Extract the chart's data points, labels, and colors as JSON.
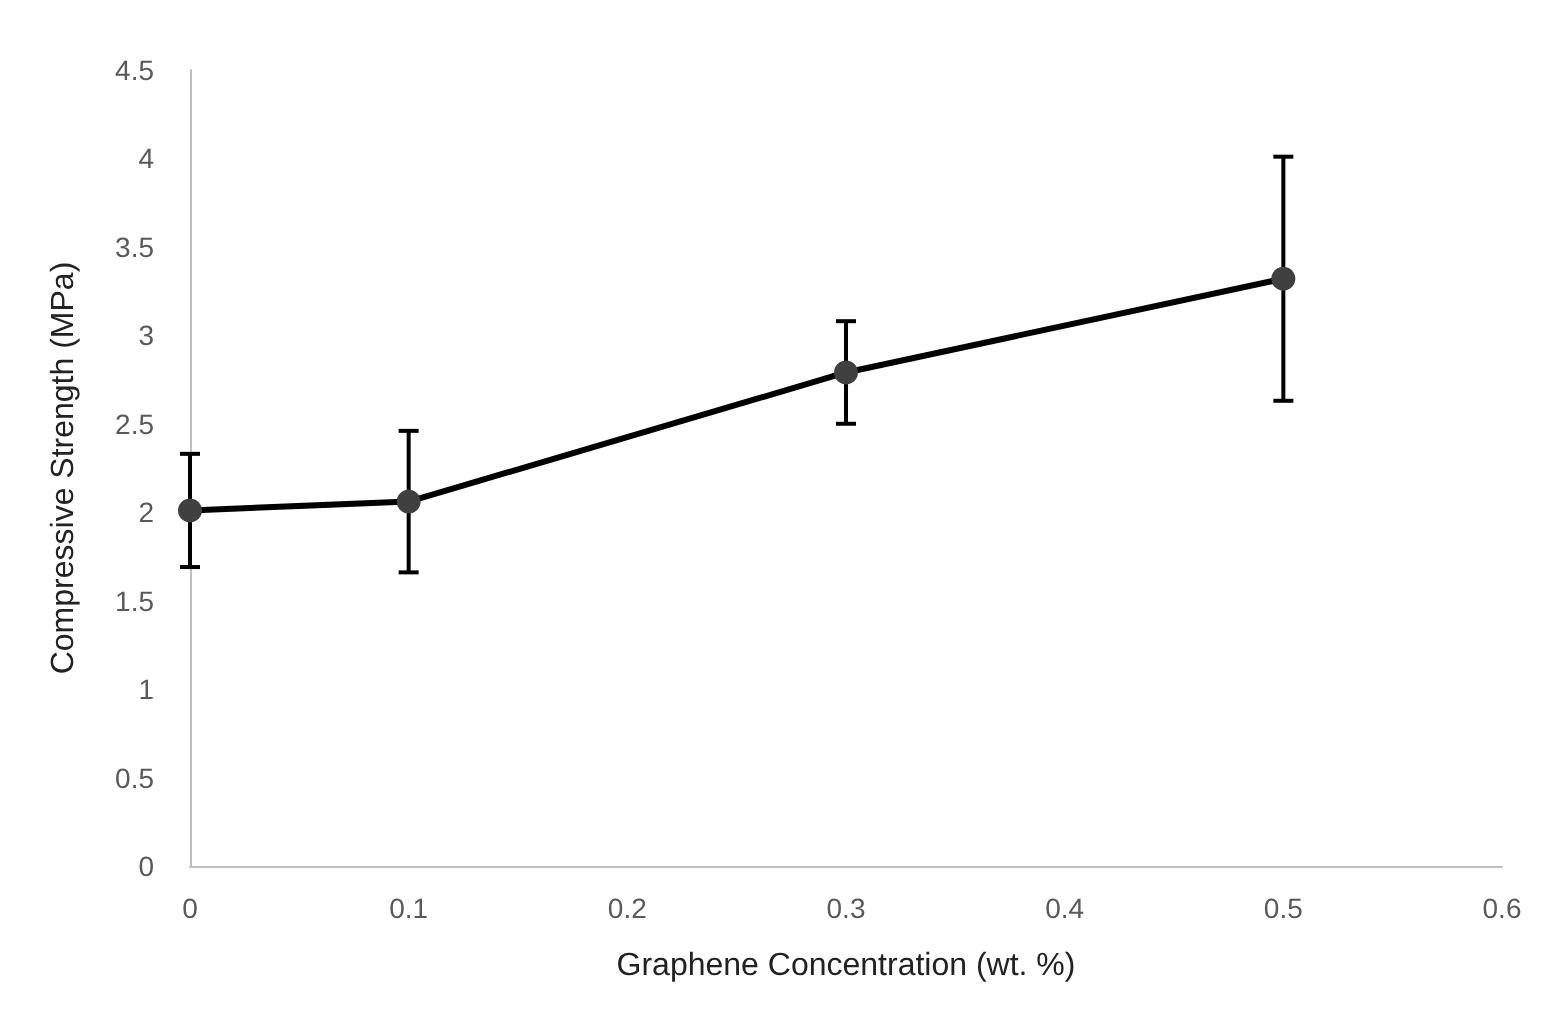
{
  "chart_data": {
    "type": "line",
    "xlabel": "Graphene Concentration (wt. %)",
    "ylabel": "Compressive Strength (MPa)",
    "x": [
      0,
      0.1,
      0.3,
      0.5
    ],
    "series": [
      {
        "color": "#000000",
        "values": [
          2.01,
          2.06,
          2.79,
          3.32
        ],
        "errors": [
          0.32,
          0.4,
          0.29,
          0.69
        ]
      }
    ],
    "xlim": [
      0,
      0.6
    ],
    "xticks": [
      0,
      0.1,
      0.2,
      0.3,
      0.4,
      0.5,
      0.6
    ],
    "ylim": [
      0,
      4.5
    ],
    "yticks": [
      0,
      0.5,
      1,
      1.5,
      2,
      2.5,
      3,
      3.5,
      4,
      4.5
    ],
    "grid": false,
    "marker": "circle",
    "line_style": "solid"
  }
}
